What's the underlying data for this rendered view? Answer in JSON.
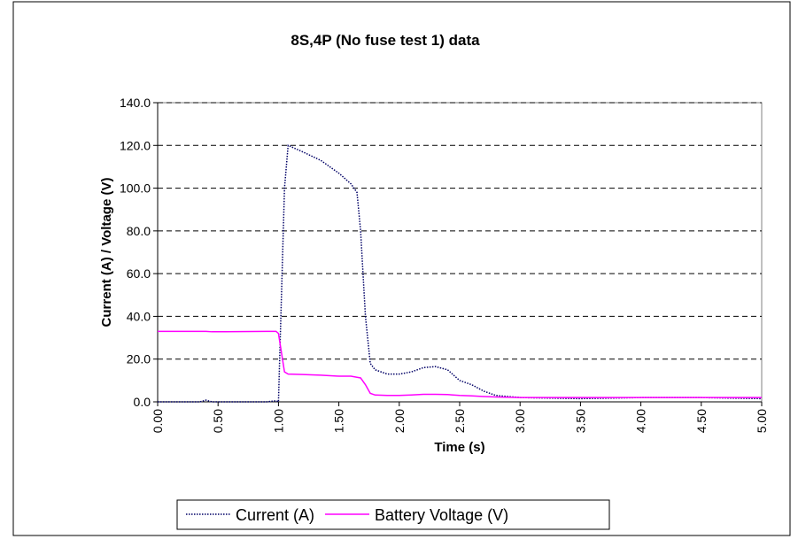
{
  "chart_data": {
    "type": "line",
    "title": "8S,4P (No fuse test 1) data",
    "x_label": "Time (s)",
    "y_label": "Current (A) / Voltage (V)",
    "x": [
      0,
      0.35,
      0.4,
      0.45,
      0.9,
      0.98,
      1.0,
      1.05,
      1.08,
      1.2,
      1.35,
      1.5,
      1.6,
      1.65,
      1.68,
      1.72,
      1.76,
      1.8,
      1.9,
      2.0,
      2.1,
      2.2,
      2.3,
      2.4,
      2.5,
      2.6,
      2.7,
      2.8,
      3.0,
      3.5,
      4.0,
      4.5,
      5.0
    ],
    "series": [
      {
        "name": "Current (A)",
        "color": "#000066",
        "linestyle": "dotted",
        "values": [
          0,
          0,
          0.8,
          0,
          0,
          0.5,
          0,
          100,
          120,
          117,
          113,
          107,
          102,
          98,
          80,
          40,
          18,
          15,
          13,
          13,
          14,
          16,
          16.5,
          15,
          10,
          8,
          5,
          3,
          2,
          1.5,
          2,
          2,
          1.5
        ]
      },
      {
        "name": "Battery Voltage (V)",
        "color": "#ff00ff",
        "linestyle": "solid",
        "values": [
          33,
          33,
          33,
          32.8,
          33,
          33,
          32,
          14,
          13,
          12.8,
          12.5,
          12,
          12,
          11.5,
          11.2,
          8,
          4,
          3.2,
          3,
          3,
          3.2,
          3.5,
          3.5,
          3.4,
          3,
          2.8,
          2.5,
          2.3,
          2,
          2,
          2,
          2,
          2
        ]
      }
    ],
    "xlim": [
      0,
      5
    ],
    "xticks": [
      {
        "value": 0,
        "label": "0.00"
      },
      {
        "value": 0.5,
        "label": "0.50"
      },
      {
        "value": 1,
        "label": "1.00"
      },
      {
        "value": 1.5,
        "label": "1.50"
      },
      {
        "value": 2,
        "label": "2.00"
      },
      {
        "value": 2.5,
        "label": "2.50"
      },
      {
        "value": 3,
        "label": "3.00"
      },
      {
        "value": 3.5,
        "label": "3.50"
      },
      {
        "value": 4,
        "label": "4.00"
      },
      {
        "value": 4.5,
        "label": "4.50"
      },
      {
        "value": 5,
        "label": "5.00"
      }
    ],
    "ylim": [
      0,
      140
    ],
    "yticks": [
      {
        "value": 0,
        "label": "0.0"
      },
      {
        "value": 20,
        "label": "20.0"
      },
      {
        "value": 40,
        "label": "40.0"
      },
      {
        "value": 60,
        "label": "60.0"
      },
      {
        "value": 80,
        "label": "80.0"
      },
      {
        "value": 100,
        "label": "100.0"
      },
      {
        "value": 120,
        "label": "120.0"
      },
      {
        "value": 140,
        "label": "140.0"
      }
    ],
    "grid": true,
    "legend": "bottom"
  }
}
